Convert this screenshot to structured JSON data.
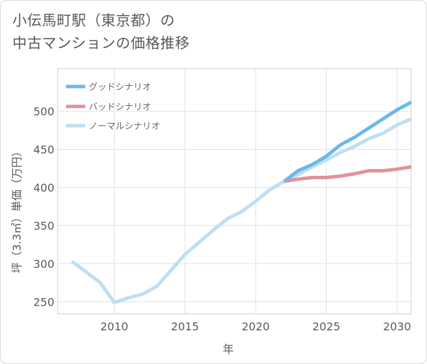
{
  "title_lines": [
    "小伝馬町駅（東京都）の",
    "中古マンションの価格推移"
  ],
  "chart_data": {
    "type": "line",
    "title": "小伝馬町駅（東京都）の中古マンションの価格推移",
    "xlabel": "年",
    "ylabel": "坪（3.3㎡）単価（万円）",
    "xlim": [
      2006,
      2031
    ],
    "ylim": [
      234,
      556
    ],
    "x_ticks": [
      2010,
      2015,
      2020,
      2025,
      2030
    ],
    "y_ticks": [
      250,
      300,
      350,
      400,
      450,
      500
    ],
    "grid": true,
    "legend_position": "top-left",
    "series": [
      {
        "name": "グッドシナリオ",
        "color": "#6cb8ea",
        "x": [
          2022,
          2023,
          2024,
          2025,
          2026,
          2027,
          2028,
          2029,
          2030,
          2031
        ],
        "values": [
          408,
          422,
          430,
          441,
          456,
          466,
          478,
          490,
          502,
          512
        ]
      },
      {
        "name": "バッドシナリオ",
        "color": "#e0939c",
        "x": [
          2022,
          2023,
          2024,
          2025,
          2026,
          2027,
          2028,
          2029,
          2030,
          2031
        ],
        "values": [
          408,
          411,
          413,
          413,
          415,
          418,
          422,
          422,
          424,
          427
        ]
      },
      {
        "name": "ノーマルシナリオ",
        "color": "#bfdff0",
        "x": [
          2007,
          2008,
          2009,
          2010,
          2011,
          2012,
          2013,
          2014,
          2015,
          2016,
          2017,
          2018,
          2019,
          2020,
          2021,
          2022,
          2023,
          2024,
          2025,
          2026,
          2027,
          2028,
          2029,
          2030,
          2031
        ],
        "values": [
          303,
          289,
          275,
          249,
          255,
          260,
          270,
          291,
          312,
          328,
          344,
          359,
          368,
          382,
          397,
          408,
          417,
          427,
          436,
          446,
          454,
          464,
          471,
          482,
          490
        ]
      }
    ]
  }
}
